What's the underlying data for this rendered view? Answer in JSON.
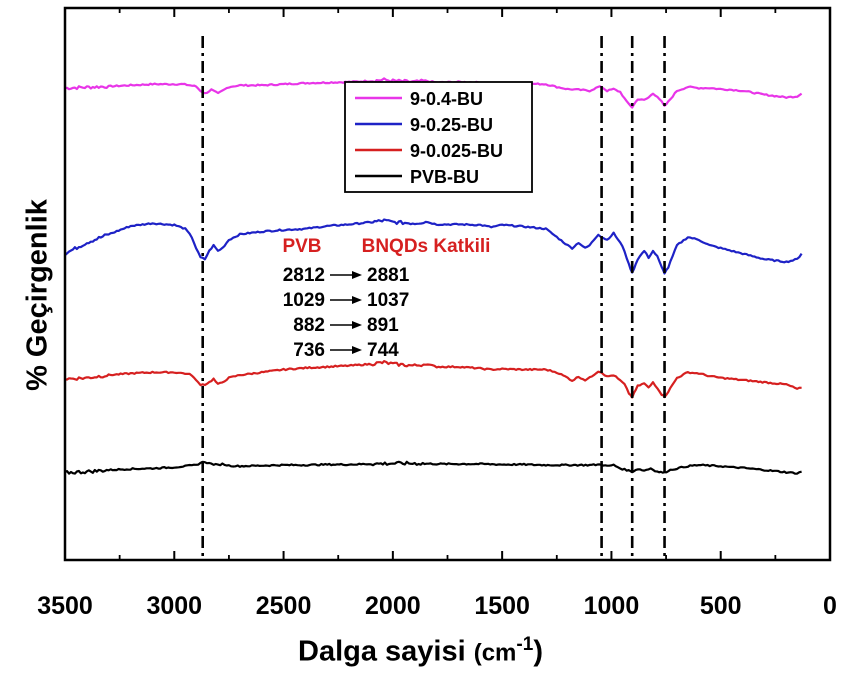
{
  "chart_data": {
    "type": "line",
    "xlabel": "Dalga sayisi",
    "xlabel_unit_prefix": "(cm",
    "xlabel_unit_exp": "-1",
    "xlabel_unit_suffix": ")",
    "ylabel": "% Geçirgenlik",
    "xlim": [
      3500,
      0
    ],
    "x_ticks": [
      "3500",
      "3000",
      "2500",
      "2000",
      "1500",
      "1000",
      "500",
      "0"
    ],
    "y_ticks_shown": false,
    "legend_position": "top-center",
    "reference_lines_x": [
      2870,
      1045,
      905,
      757
    ],
    "series": [
      {
        "name": "9-0.4-BU",
        "color": "#E835E8",
        "x": [
          3500,
          3300,
          3100,
          2960,
          2900,
          2880,
          2860,
          2830,
          2800,
          2780,
          2750,
          2700,
          2600,
          2500,
          2400,
          2300,
          2200,
          2100,
          2040,
          2000,
          1900,
          1850,
          1800,
          1700,
          1600,
          1550,
          1500,
          1400,
          1300,
          1250,
          1200,
          1150,
          1100,
          1060,
          1045,
          1020,
          990,
          960,
          930,
          905,
          880,
          850,
          830,
          810,
          790,
          770,
          757,
          740,
          700,
          650,
          600,
          550,
          500,
          450,
          400,
          300,
          200,
          150,
          130
        ],
        "y": [
          0.855,
          0.858,
          0.862,
          0.862,
          0.858,
          0.85,
          0.845,
          0.852,
          0.845,
          0.85,
          0.857,
          0.86,
          0.86,
          0.862,
          0.864,
          0.865,
          0.866,
          0.868,
          0.87,
          0.868,
          0.866,
          0.868,
          0.865,
          0.866,
          0.865,
          0.862,
          0.864,
          0.863,
          0.862,
          0.857,
          0.853,
          0.852,
          0.85,
          0.857,
          0.857,
          0.85,
          0.853,
          0.848,
          0.83,
          0.82,
          0.835,
          0.833,
          0.838,
          0.845,
          0.84,
          0.83,
          0.822,
          0.83,
          0.85,
          0.857,
          0.855,
          0.855,
          0.853,
          0.852,
          0.85,
          0.843,
          0.838,
          0.84,
          0.845
        ]
      },
      {
        "name": "9-0.25-BU",
        "color": "#1E22C6",
        "x": [
          3500,
          3400,
          3300,
          3200,
          3100,
          3000,
          2950,
          2920,
          2900,
          2880,
          2860,
          2840,
          2820,
          2800,
          2780,
          2750,
          2700,
          2600,
          2500,
          2400,
          2300,
          2200,
          2100,
          2040,
          2000,
          1900,
          1850,
          1800,
          1700,
          1600,
          1550,
          1500,
          1400,
          1300,
          1250,
          1200,
          1180,
          1150,
          1120,
          1100,
          1060,
          1045,
          1020,
          990,
          960,
          940,
          920,
          905,
          880,
          850,
          830,
          810,
          790,
          770,
          757,
          740,
          700,
          650,
          600,
          550,
          500,
          450,
          400,
          300,
          200,
          150,
          130
        ],
        "y": [
          0.555,
          0.575,
          0.59,
          0.605,
          0.61,
          0.607,
          0.6,
          0.585,
          0.565,
          0.548,
          0.545,
          0.56,
          0.57,
          0.56,
          0.565,
          0.58,
          0.59,
          0.595,
          0.598,
          0.6,
          0.605,
          0.608,
          0.612,
          0.615,
          0.612,
          0.61,
          0.613,
          0.608,
          0.608,
          0.607,
          0.603,
          0.607,
          0.604,
          0.6,
          0.585,
          0.57,
          0.565,
          0.575,
          0.565,
          0.57,
          0.59,
          0.585,
          0.58,
          0.592,
          0.575,
          0.56,
          0.535,
          0.52,
          0.545,
          0.56,
          0.548,
          0.56,
          0.55,
          0.53,
          0.52,
          0.53,
          0.57,
          0.585,
          0.58,
          0.57,
          0.565,
          0.56,
          0.555,
          0.545,
          0.54,
          0.545,
          0.555
        ]
      },
      {
        "name": "9-0.025-BU",
        "color": "#D62020",
        "x": [
          3500,
          3400,
          3300,
          3200,
          3100,
          3000,
          2950,
          2920,
          2900,
          2880,
          2860,
          2840,
          2820,
          2800,
          2780,
          2750,
          2700,
          2600,
          2500,
          2400,
          2300,
          2200,
          2100,
          2040,
          2000,
          1900,
          1850,
          1800,
          1700,
          1600,
          1550,
          1500,
          1400,
          1300,
          1250,
          1200,
          1180,
          1150,
          1120,
          1100,
          1060,
          1045,
          1020,
          990,
          960,
          940,
          920,
          905,
          880,
          850,
          830,
          810,
          790,
          770,
          757,
          740,
          700,
          650,
          600,
          550,
          500,
          450,
          400,
          300,
          200,
          150,
          130
        ],
        "y": [
          0.328,
          0.33,
          0.335,
          0.338,
          0.34,
          0.34,
          0.338,
          0.335,
          0.325,
          0.318,
          0.318,
          0.322,
          0.328,
          0.318,
          0.322,
          0.33,
          0.335,
          0.34,
          0.345,
          0.348,
          0.35,
          0.352,
          0.355,
          0.358,
          0.355,
          0.352,
          0.355,
          0.35,
          0.35,
          0.347,
          0.345,
          0.346,
          0.345,
          0.345,
          0.34,
          0.33,
          0.325,
          0.332,
          0.326,
          0.33,
          0.342,
          0.34,
          0.332,
          0.335,
          0.325,
          0.318,
          0.302,
          0.295,
          0.315,
          0.32,
          0.312,
          0.322,
          0.312,
          0.3,
          0.296,
          0.305,
          0.33,
          0.34,
          0.338,
          0.333,
          0.33,
          0.328,
          0.326,
          0.322,
          0.318,
          0.31,
          0.312
        ]
      },
      {
        "name": "PVB-BU",
        "color": "#000000",
        "x": [
          3500,
          3400,
          3300,
          3200,
          3100,
          3000,
          2950,
          2900,
          2880,
          2860,
          2840,
          2800,
          2780,
          2750,
          2700,
          2600,
          2500,
          2400,
          2300,
          2200,
          2100,
          2000,
          1900,
          1800,
          1700,
          1600,
          1500,
          1400,
          1300,
          1200,
          1100,
          1045,
          1020,
          990,
          960,
          930,
          905,
          880,
          850,
          820,
          790,
          757,
          740,
          700,
          650,
          600,
          550,
          500,
          450,
          400,
          300,
          200,
          150,
          130
        ],
        "y": [
          0.158,
          0.16,
          0.163,
          0.165,
          0.166,
          0.168,
          0.17,
          0.172,
          0.176,
          0.178,
          0.175,
          0.172,
          0.174,
          0.171,
          0.17,
          0.171,
          0.172,
          0.172,
          0.173,
          0.173,
          0.174,
          0.175,
          0.175,
          0.174,
          0.174,
          0.174,
          0.173,
          0.173,
          0.172,
          0.172,
          0.172,
          0.173,
          0.17,
          0.172,
          0.166,
          0.163,
          0.16,
          0.165,
          0.162,
          0.166,
          0.16,
          0.158,
          0.162,
          0.166,
          0.17,
          0.172,
          0.171,
          0.17,
          0.168,
          0.167,
          0.163,
          0.159,
          0.157,
          0.16
        ]
      }
    ],
    "annotation": {
      "header_left": "PVB",
      "header_right": "BNQDs Katkili",
      "header_color": "#D62020",
      "shifts": [
        {
          "from": "2812",
          "to": "2881"
        },
        {
          "from": "1029",
          "to": "1037"
        },
        {
          "from": "882",
          "to": "891"
        },
        {
          "from": "736",
          "to": "744"
        }
      ]
    }
  }
}
